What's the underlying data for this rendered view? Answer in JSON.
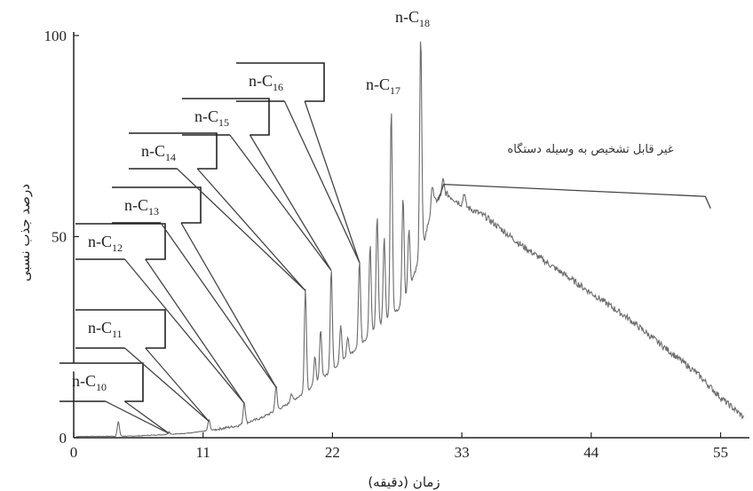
{
  "chart_data": {
    "type": "line",
    "xlabel": "زمان (دقیقه)",
    "ylabel": "درصد جذب نسبی",
    "xlim": [
      0,
      57
    ],
    "ylim": [
      0,
      100
    ],
    "xticks": [
      0,
      11,
      22,
      33,
      44,
      55
    ],
    "yticks": [
      0,
      50,
      100
    ],
    "colors": {
      "line": "#6b6b6b",
      "axis": "#222222"
    },
    "series": [
      {
        "name": "",
        "baseline": [
          [
            0,
            0.3
          ],
          [
            5,
            0.4
          ],
          [
            8,
            0.8
          ],
          [
            10,
            1.2
          ],
          [
            12,
            2
          ],
          [
            14,
            3
          ],
          [
            16,
            5
          ],
          [
            18,
            8
          ],
          [
            20,
            12
          ],
          [
            22,
            17
          ],
          [
            24,
            22
          ],
          [
            26,
            28
          ],
          [
            28,
            33
          ],
          [
            29.5,
            45
          ],
          [
            30.5,
            58
          ],
          [
            31.5,
            61
          ],
          [
            33,
            58
          ],
          [
            35,
            55
          ],
          [
            38,
            48
          ],
          [
            41,
            42
          ],
          [
            44,
            36
          ],
          [
            47,
            30
          ],
          [
            50,
            23
          ],
          [
            53,
            16
          ],
          [
            55,
            10
          ],
          [
            57,
            5
          ]
        ],
        "peaks": [
          {
            "x": 3.8,
            "y": 4
          },
          {
            "x": 8.1,
            "y": 1.5,
            "label": "n-C10"
          },
          {
            "x": 11.5,
            "y": 4.5,
            "label": "n-C11"
          },
          {
            "x": 14.5,
            "y": 9,
            "label": "n-C12"
          },
          {
            "x": 17.2,
            "y": 13,
            "label": "n-C13"
          },
          {
            "x": 19.7,
            "y": 37,
            "label": "n-C14"
          },
          {
            "x": 21.9,
            "y": 42,
            "label": "n-C15"
          },
          {
            "x": 24.3,
            "y": 44,
            "label": "n-C16"
          },
          {
            "x": 27.0,
            "y": 82,
            "label": "n-C17"
          },
          {
            "x": 29.5,
            "y": 100,
            "label": "n-C18"
          },
          {
            "x": 18.5,
            "y": 11
          },
          {
            "x": 20.5,
            "y": 20
          },
          {
            "x": 21.0,
            "y": 27
          },
          {
            "x": 22.7,
            "y": 28
          },
          {
            "x": 23.3,
            "y": 25
          },
          {
            "x": 25.2,
            "y": 48
          },
          {
            "x": 25.8,
            "y": 55
          },
          {
            "x": 26.4,
            "y": 50
          },
          {
            "x": 28.0,
            "y": 60
          },
          {
            "x": 28.5,
            "y": 52
          },
          {
            "x": 30.5,
            "y": 63
          },
          {
            "x": 31.4,
            "y": 64
          },
          {
            "x": 33.2,
            "y": 61
          }
        ]
      }
    ],
    "annotations": [
      {
        "label": "n-C10",
        "base": "C",
        "sub": "10",
        "boxed": true
      },
      {
        "label": "n-C11",
        "base": "C",
        "sub": "11",
        "boxed": true
      },
      {
        "label": "n-C12",
        "base": "C",
        "sub": "12",
        "boxed": true
      },
      {
        "label": "n-C13",
        "base": "C",
        "sub": "13",
        "boxed": true
      },
      {
        "label": "n-C14",
        "base": "C",
        "sub": "14",
        "boxed": true
      },
      {
        "label": "n-C15",
        "base": "C",
        "sub": "15",
        "boxed": true
      },
      {
        "label": "n-C16",
        "base": "C",
        "sub": "16",
        "boxed": true
      },
      {
        "label": "n-C17",
        "base": "C",
        "sub": "17",
        "boxed": false
      },
      {
        "label": "n-C18",
        "base": "C",
        "sub": "18",
        "boxed": false
      }
    ],
    "unresolved_note": {
      "text": "غیر قابل تشخیص به وسیله دستگاه",
      "x_start": 31.0,
      "x_end": 54.0
    }
  }
}
